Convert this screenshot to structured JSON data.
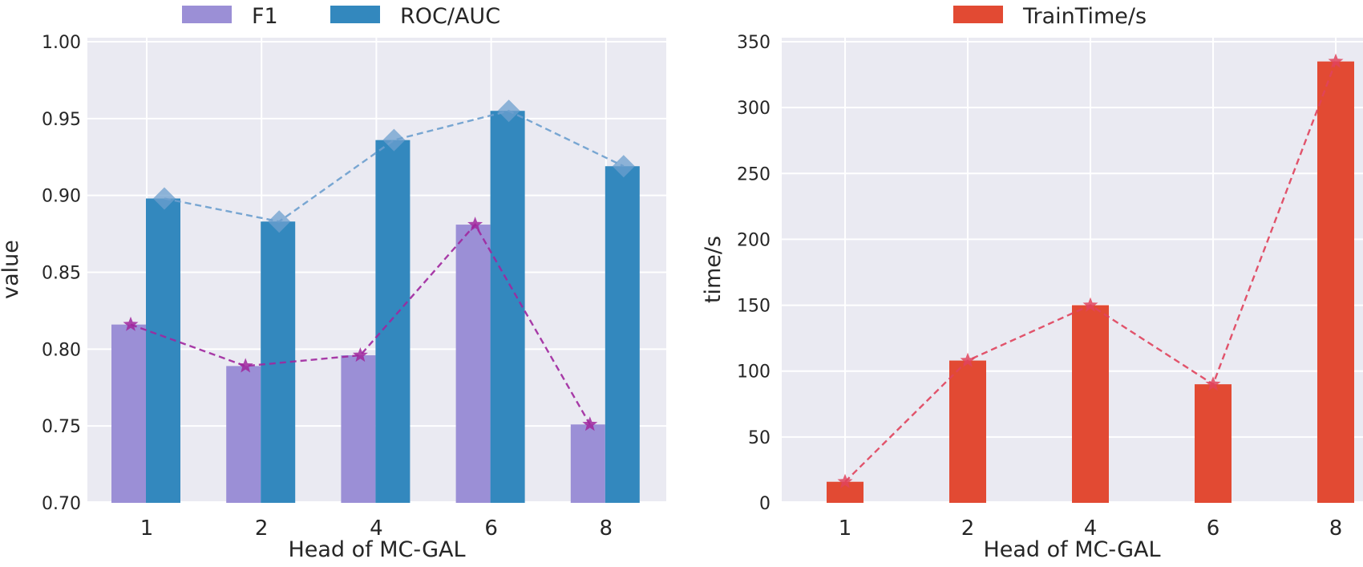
{
  "chart_data": [
    {
      "type": "bar",
      "categories": [
        "1",
        "2",
        "4",
        "6",
        "8"
      ],
      "series": [
        {
          "name": "F1",
          "values": [
            0.816,
            0.789,
            0.796,
            0.881,
            0.751
          ],
          "color": "#9b8fd6",
          "line_color": "#a0279e",
          "marker": "star"
        },
        {
          "name": "ROC/AUC",
          "values": [
            0.898,
            0.883,
            0.936,
            0.955,
            0.919
          ],
          "color": "#3388be",
          "line_color": "#6c9fce",
          "marker": "diamond"
        }
      ],
      "xlabel": "Head of MC-GAL",
      "ylabel": "value",
      "ylim": [
        0.7,
        1.0
      ],
      "yticks": [
        "0.70",
        "0.75",
        "0.80",
        "0.85",
        "0.90",
        "0.95",
        "1.00"
      ],
      "grid": true,
      "legend": "top"
    },
    {
      "type": "bar",
      "categories": [
        "1",
        "2",
        "4",
        "6",
        "8"
      ],
      "series": [
        {
          "name": "TrainTime/s",
          "values": [
            16,
            108,
            150,
            90,
            335
          ],
          "color": "#e24a33",
          "line_color": "#e0435c",
          "marker": "star"
        }
      ],
      "xlabel": "Head of MC-GAL",
      "ylabel": "time/s",
      "ylim": [
        0,
        350
      ],
      "yticks": [
        "0",
        "50",
        "100",
        "150",
        "200",
        "250",
        "300",
        "350"
      ],
      "grid": true,
      "legend": "top"
    }
  ]
}
